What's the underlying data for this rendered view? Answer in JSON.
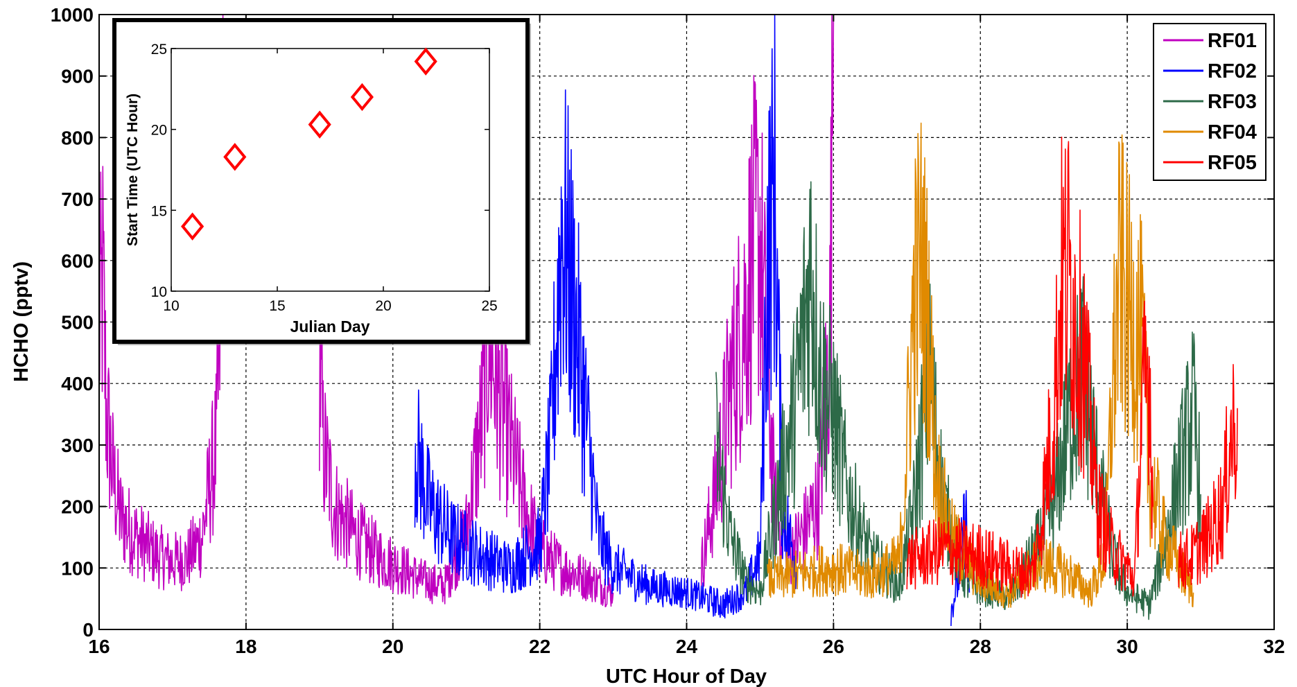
{
  "chart_data": [
    {
      "type": "line",
      "title": "",
      "xlabel": "UTC Hour of Day",
      "ylabel": "HCHO (pptv)",
      "xlim": [
        16,
        32
      ],
      "ylim": [
        0,
        1000
      ],
      "xticks": [
        "16",
        "18",
        "20",
        "22",
        "24",
        "26",
        "28",
        "30",
        "32"
      ],
      "yticks": [
        "0",
        "100",
        "200",
        "300",
        "400",
        "500",
        "600",
        "700",
        "800",
        "900",
        "1000"
      ],
      "grid": true,
      "legend_position": "top-right",
      "series": [
        {
          "name": "RF01",
          "color": "#c000c0",
          "segments": [
            {
              "points": [
                [
                  16.0,
                  480
                ],
                [
                  16.05,
                  560
                ],
                [
                  16.1,
                  350
                ],
                [
                  16.2,
                  240
                ],
                [
                  16.3,
                  180
                ],
                [
                  16.5,
                  150
                ],
                [
                  16.8,
                  120
                ],
                [
                  17.0,
                  110
                ],
                [
                  17.2,
                  115
                ],
                [
                  17.4,
                  150
                ],
                [
                  17.5,
                  230
                ],
                [
                  17.6,
                  300
                ],
                [
                  17.65,
                  500
                ],
                [
                  17.7,
                  1000
                ]
              ]
            },
            {
              "points": [
                [
                  19.0,
                  450
                ],
                [
                  19.05,
                  300
                ],
                [
                  19.2,
                  200
                ],
                [
                  19.5,
                  150
                ],
                [
                  19.8,
                  120
                ],
                [
                  20.1,
                  100
                ],
                [
                  20.4,
                  80
                ],
                [
                  20.7,
                  70
                ],
                [
                  21.0,
                  160
                ],
                [
                  21.2,
                  330
                ],
                [
                  21.3,
                  480
                ],
                [
                  21.45,
                  380
                ],
                [
                  21.6,
                  300
                ],
                [
                  21.8,
                  200
                ],
                [
                  22.0,
                  130
                ],
                [
                  22.3,
                  100
                ],
                [
                  22.7,
                  80
                ],
                [
                  23.0,
                  60
                ]
              ]
            },
            {
              "points": [
                [
                  24.2,
                  100
                ],
                [
                  24.4,
                  230
                ],
                [
                  24.6,
                  400
                ],
                [
                  24.8,
                  520
                ],
                [
                  24.9,
                  620
                ],
                [
                  25.0,
                  640
                ],
                [
                  25.1,
                  420
                ],
                [
                  25.2,
                  200
                ],
                [
                  25.4,
                  120
                ],
                [
                  25.6,
                  160
                ],
                [
                  25.8,
                  210
                ],
                [
                  25.95,
                  480
                ],
                [
                  26.0,
                  1000
                ]
              ]
            }
          ]
        },
        {
          "name": "RF02",
          "color": "#0000ff",
          "segments": [
            {
              "points": [
                [
                  20.3,
                  300
                ],
                [
                  20.5,
                  200
                ],
                [
                  20.8,
                  150
                ],
                [
                  21.2,
                  120
                ],
                [
                  21.6,
                  100
                ],
                [
                  22.0,
                  140
                ],
                [
                  22.15,
                  300
                ],
                [
                  22.3,
                  660
                ],
                [
                  22.45,
                  540
                ],
                [
                  22.6,
                  380
                ],
                [
                  22.8,
                  150
                ],
                [
                  23.0,
                  100
                ],
                [
                  23.5,
                  70
                ],
                [
                  24.0,
                  60
                ],
                [
                  24.5,
                  40
                ],
                [
                  24.8,
                  60
                ],
                [
                  25.0,
                  120
                ],
                [
                  25.1,
                  600
                ],
                [
                  25.2,
                  720
                ],
                [
                  25.3,
                  200
                ],
                [
                  25.5,
                  100
                ]
              ]
            },
            {
              "points": [
                [
                  27.6,
                  30
                ],
                [
                  27.7,
                  80
                ],
                [
                  27.8,
                  190
                ],
                [
                  27.85,
                  60
                ]
              ]
            }
          ]
        },
        {
          "name": "RF03",
          "color": "#2d6a48",
          "segments": [
            {
              "points": [
                [
                  24.4,
                  300
                ],
                [
                  24.6,
                  150
                ],
                [
                  24.8,
                  80
                ],
                [
                  25.0,
                  60
                ],
                [
                  25.3,
                  250
                ],
                [
                  25.5,
                  380
                ],
                [
                  25.7,
                  600
                ],
                [
                  25.8,
                  420
                ],
                [
                  26.0,
                  350
                ],
                [
                  26.2,
                  220
                ],
                [
                  26.5,
                  120
                ],
                [
                  26.9,
                  70
                ],
                [
                  27.1,
                  200
                ],
                [
                  27.3,
                  420
                ],
                [
                  27.5,
                  200
                ],
                [
                  27.8,
                  80
                ],
                [
                  28.4,
                  50
                ],
                [
                  28.8,
                  140
                ],
                [
                  29.0,
                  200
                ],
                [
                  29.2,
                  340
                ],
                [
                  29.4,
                  420
                ],
                [
                  29.6,
                  250
                ],
                [
                  29.8,
                  120
                ],
                [
                  30.0,
                  60
                ],
                [
                  30.3,
                  40
                ],
                [
                  30.5,
                  130
                ],
                [
                  30.7,
                  250
                ],
                [
                  30.9,
                  350
                ],
                [
                  31.0,
                  220
                ]
              ]
            }
          ]
        },
        {
          "name": "RF04",
          "color": "#e08a00",
          "segments": [
            {
              "points": [
                [
                  25.1,
                  80
                ],
                [
                  25.5,
                  90
                ],
                [
                  26.0,
                  100
                ],
                [
                  26.5,
                  85
                ],
                [
                  26.9,
                  110
                ],
                [
                  27.0,
                  300
                ],
                [
                  27.1,
                  550
                ],
                [
                  27.2,
                  600
                ],
                [
                  27.3,
                  480
                ],
                [
                  27.4,
                  250
                ],
                [
                  27.6,
                  150
                ],
                [
                  28.0,
                  80
                ],
                [
                  28.4,
                  60
                ],
                [
                  28.8,
                  110
                ],
                [
                  29.2,
                  90
                ],
                [
                  29.5,
                  60
                ],
                [
                  29.7,
                  120
                ],
                [
                  29.8,
                  400
                ],
                [
                  29.9,
                  580
                ],
                [
                  30.0,
                  520
                ],
                [
                  30.2,
                  460
                ],
                [
                  30.3,
                  250
                ],
                [
                  30.5,
                  150
                ],
                [
                  30.8,
                  80
                ],
                [
                  30.9,
                  60
                ]
              ]
            }
          ]
        },
        {
          "name": "RF05",
          "color": "#ff0000",
          "segments": [
            {
              "points": [
                [
                  27.0,
                  110
                ],
                [
                  27.5,
                  130
                ],
                [
                  28.0,
                  120
                ],
                [
                  28.4,
                  100
                ],
                [
                  28.7,
                  90
                ],
                [
                  28.8,
                  150
                ],
                [
                  29.0,
                  350
                ],
                [
                  29.1,
                  560
                ],
                [
                  29.2,
                  580
                ],
                [
                  29.3,
                  500
                ],
                [
                  29.4,
                  450
                ],
                [
                  29.6,
                  200
                ],
                [
                  29.8,
                  130
                ],
                [
                  30.0,
                  100
                ],
                [
                  30.1,
                  80
                ],
                [
                  30.2,
                  350
                ],
                [
                  30.3,
                  430
                ],
                [
                  30.35,
                  200
                ]
              ]
            },
            {
              "points": [
                [
                  30.7,
                  110
                ],
                [
                  30.9,
                  120
                ],
                [
                  31.1,
                  150
                ],
                [
                  31.3,
                  200
                ],
                [
                  31.4,
                  300
                ],
                [
                  31.5,
                  360
                ]
              ]
            }
          ]
        }
      ]
    },
    {
      "type": "scatter",
      "title": "",
      "xlabel": "Julian Day",
      "ylabel": "Start Time (UTC Hour)",
      "xlim": [
        10,
        25
      ],
      "ylim": [
        10,
        25
      ],
      "xticks": [
        "10",
        "15",
        "20",
        "25"
      ],
      "yticks": [
        "10",
        "15",
        "20",
        "25"
      ],
      "marker": "diamond",
      "marker_color": "#ff0000",
      "x": [
        11,
        13,
        17,
        19,
        22
      ],
      "y": [
        14.0,
        18.3,
        20.3,
        22.0,
        24.2
      ]
    }
  ]
}
